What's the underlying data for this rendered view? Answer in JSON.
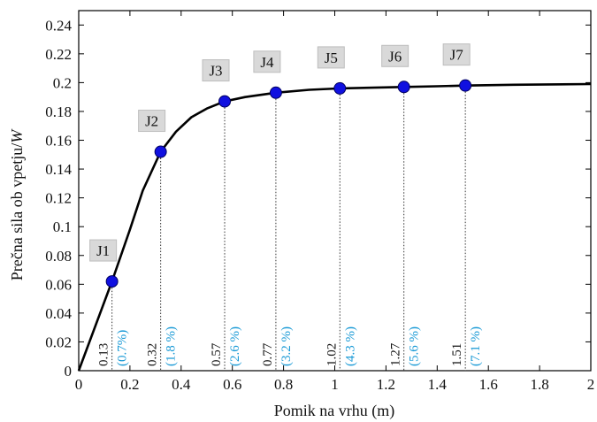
{
  "chart_data": {
    "type": "line",
    "title": "",
    "xlabel": "Pomik na vrhu (m)",
    "ylabel_main": "Prečna sila ob vpetju/",
    "ylabel_var": "W",
    "xlim": [
      0,
      2
    ],
    "ylim": [
      0,
      0.25
    ],
    "xticks": [
      0,
      0.2,
      0.4,
      0.6,
      0.8,
      1,
      1.2,
      1.4,
      1.6,
      1.8,
      2
    ],
    "xtick_labels": [
      "0",
      "0.2",
      "0.4",
      "0.6",
      "0.8",
      "1",
      "1.2",
      "1.4",
      "1.6",
      "1.8",
      "2"
    ],
    "yticks": [
      0,
      0.02,
      0.04,
      0.06,
      0.08,
      0.1,
      0.12,
      0.14,
      0.16,
      0.18,
      0.2,
      0.22,
      0.24
    ],
    "ytick_labels": [
      "0",
      "0.02",
      "0.04",
      "0.06",
      "0.08",
      "0.1",
      "0.12",
      "0.14",
      "0.16",
      "0.18",
      "0.2",
      "0.22",
      "0.24"
    ],
    "grid": false,
    "curve": {
      "x": [
        0,
        0.13,
        0.2,
        0.25,
        0.32,
        0.38,
        0.44,
        0.5,
        0.57,
        0.65,
        0.77,
        0.9,
        1.02,
        1.15,
        1.27,
        1.4,
        1.51,
        1.7,
        2.0
      ],
      "y": [
        0,
        0.062,
        0.098,
        0.125,
        0.152,
        0.166,
        0.176,
        0.182,
        0.187,
        0.19,
        0.193,
        0.195,
        0.196,
        0.1965,
        0.197,
        0.1975,
        0.198,
        0.1985,
        0.199
      ]
    },
    "points": [
      {
        "label": "J1",
        "x": 0.13,
        "y": 0.062,
        "disp": "0.13",
        "pct": "(0.7%)"
      },
      {
        "label": "J2",
        "x": 0.32,
        "y": 0.152,
        "disp": "0.32",
        "pct": "(1.8 %)"
      },
      {
        "label": "J3",
        "x": 0.57,
        "y": 0.187,
        "disp": "0.57",
        "pct": "(2.6 %)"
      },
      {
        "label": "J4",
        "x": 0.77,
        "y": 0.193,
        "disp": "0.77",
        "pct": "(3.2 %)"
      },
      {
        "label": "J5",
        "x": 1.02,
        "y": 0.196,
        "disp": "1.02",
        "pct": "(4.3 %)"
      },
      {
        "label": "J6",
        "x": 1.27,
        "y": 0.197,
        "disp": "1.27",
        "pct": "(5.6 %)"
      },
      {
        "label": "J7",
        "x": 1.51,
        "y": 0.198,
        "disp": "1.51",
        "pct": "(7.1 %)"
      }
    ],
    "colors": {
      "line": "#000000",
      "marker_fill": "#1010e0",
      "marker_stroke": "#000060",
      "pct_text": "#1a9ad6",
      "label_box": "#d9d9d9"
    }
  }
}
